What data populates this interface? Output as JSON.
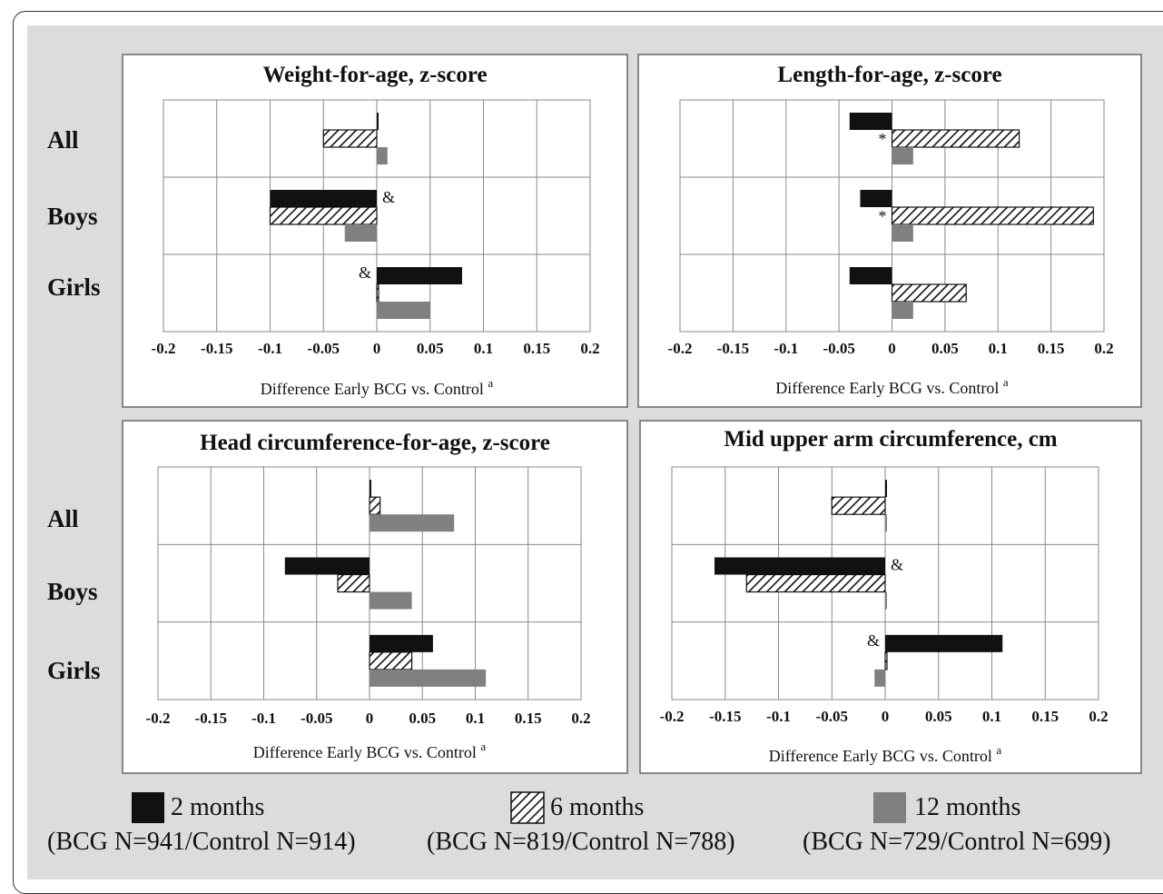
{
  "chart_data": [
    {
      "type": "bar",
      "orientation": "horizontal",
      "title": "Weight-for-age, z-score",
      "xlabel": "Difference Early BCG vs. Control",
      "xlabel_superscript": "a",
      "xlim": [
        -0.2,
        0.2
      ],
      "x_ticks": [
        "-0.2",
        "-0.15",
        "-0.1",
        "-0.05",
        "0",
        "0.05",
        "0.1",
        "0.15",
        "0.2"
      ],
      "categories": [
        "All",
        "Boys",
        "Girls"
      ],
      "series": [
        {
          "name": "2 months",
          "values": [
            0.0,
            -0.1,
            0.08
          ]
        },
        {
          "name": "6 months",
          "values": [
            -0.05,
            -0.1,
            0.0
          ]
        },
        {
          "name": "12 months",
          "values": [
            0.01,
            -0.03,
            0.05
          ]
        }
      ],
      "annotations": [
        {
          "category": "Boys",
          "text": "&"
        },
        {
          "category": "Girls",
          "text": "&"
        }
      ]
    },
    {
      "type": "bar",
      "orientation": "horizontal",
      "title": "Length-for-age, z-score",
      "xlabel": "Difference Early BCG vs. Control",
      "xlabel_superscript": "a",
      "xlim": [
        -0.2,
        0.2
      ],
      "x_ticks": [
        "-0.2",
        "-0.15",
        "-0.1",
        "-0.05",
        "0",
        "0.05",
        "0.1",
        "0.15",
        "0.2"
      ],
      "categories": [
        "All",
        "Boys",
        "Girls"
      ],
      "series": [
        {
          "name": "2 months",
          "values": [
            -0.04,
            -0.03,
            -0.04
          ]
        },
        {
          "name": "6 months",
          "values": [
            0.12,
            0.19,
            0.07
          ]
        },
        {
          "name": "12 months",
          "values": [
            0.02,
            0.02,
            0.02
          ]
        }
      ],
      "annotations": [
        {
          "category": "All",
          "text": "*"
        },
        {
          "category": "Boys",
          "text": "*"
        }
      ]
    },
    {
      "type": "bar",
      "orientation": "horizontal",
      "title": "Head circumference-for-age, z-score",
      "xlabel": "Difference Early BCG vs. Control",
      "xlabel_superscript": "a",
      "xlim": [
        -0.2,
        0.2
      ],
      "x_ticks": [
        "-0.2",
        "-0.15",
        "-0.1",
        "-0.05",
        "0",
        "0.05",
        "0.1",
        "0.15",
        "0.2"
      ],
      "categories": [
        "All",
        "Boys",
        "Girls"
      ],
      "series": [
        {
          "name": "2 months",
          "values": [
            0.0,
            -0.08,
            0.06
          ]
        },
        {
          "name": "6 months",
          "values": [
            0.01,
            -0.03,
            0.04
          ]
        },
        {
          "name": "12 months",
          "values": [
            0.08,
            0.04,
            0.11
          ]
        }
      ],
      "annotations": []
    },
    {
      "type": "bar",
      "orientation": "horizontal",
      "title": "Mid upper arm circumference, cm",
      "xlabel": "Difference Early BCG vs. Control",
      "xlabel_superscript": "a",
      "xlim": [
        -0.2,
        0.2
      ],
      "x_ticks": [
        "-0.2",
        "-0.15",
        "-0.1",
        "-0.05",
        "0",
        "0.05",
        "0.1",
        "0.15",
        "0.2"
      ],
      "categories": [
        "All",
        "Boys",
        "Girls"
      ],
      "series": [
        {
          "name": "2 months",
          "values": [
            0.0,
            -0.16,
            0.11
          ]
        },
        {
          "name": "6 months",
          "values": [
            -0.05,
            -0.13,
            0.0
          ]
        },
        {
          "name": "12 months",
          "values": [
            0.0,
            0.0,
            -0.01
          ]
        }
      ],
      "annotations": [
        {
          "category": "Boys",
          "text": "&"
        },
        {
          "category": "Girls",
          "text": "&"
        }
      ]
    }
  ],
  "legend": [
    {
      "label": "2 months",
      "n": "(BCG N=941/Control N=914)",
      "style": "solid-black"
    },
    {
      "label": "6 months",
      "n": "(BCG N=819/Control N=788)",
      "style": "hatched"
    },
    {
      "label": "12 months",
      "n": "(BCG N=729/Control N=699)",
      "style": "solid-gray"
    }
  ],
  "colors": {
    "two_months": "#111111",
    "six_months_hatch": "#222222",
    "twelve_months": "#808080",
    "background": "#dcdcdc",
    "panel": "#ffffff",
    "grid": "#8a8a8a"
  }
}
